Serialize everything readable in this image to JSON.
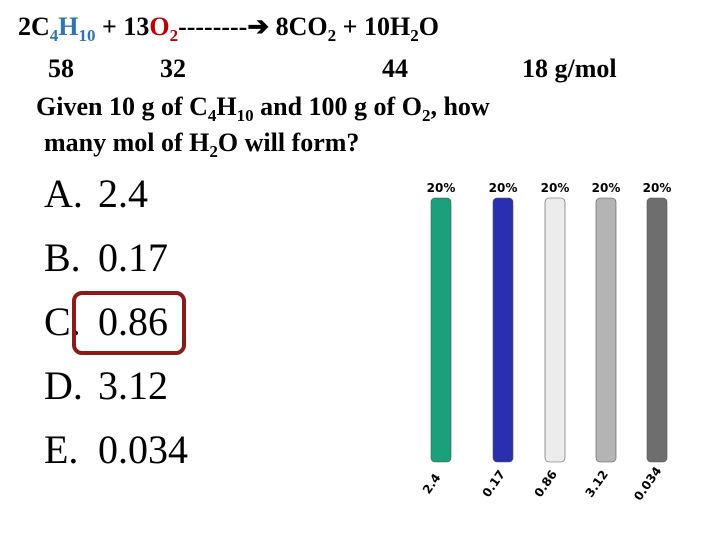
{
  "slide": {
    "equation": [
      {
        "text": "2C"
      },
      {
        "text": "4",
        "sub": true,
        "color": "#2e75b6"
      },
      {
        "text": "H",
        "color": "#2e75b6"
      },
      {
        "text": "10",
        "sub": true,
        "color": "#2e75b6"
      },
      {
        "text": " + 13"
      },
      {
        "text": "O",
        "color": "#c00000"
      },
      {
        "text": "2",
        "sub": true,
        "color": "#c00000"
      },
      {
        "text": "--------➔ 8CO"
      },
      {
        "text": "2",
        "sub": true
      },
      {
        "text": " + 10H"
      },
      {
        "text": "2",
        "sub": true
      },
      {
        "text": "O"
      }
    ],
    "masses": [
      "58",
      "32",
      "44",
      "18 g/mol"
    ],
    "question_line1": [
      {
        "text": "Given 10 g of C"
      },
      {
        "text": "4",
        "sub": true
      },
      {
        "text": "H"
      },
      {
        "text": "10",
        "sub": true
      },
      {
        "text": " and 100 g of O"
      },
      {
        "text": "2",
        "sub": true
      },
      {
        "text": ", how"
      }
    ],
    "question_line2": [
      {
        "text": "many mol of H"
      },
      {
        "text": "2",
        "sub": true
      },
      {
        "text": "O will form?"
      }
    ],
    "answers": [
      {
        "letter": "A.",
        "text": "2.4"
      },
      {
        "letter": "B.",
        "text": "0.17"
      },
      {
        "letter": "C.",
        "text": "0.86"
      },
      {
        "letter": "D.",
        "text": "3.12"
      },
      {
        "letter": "E.",
        "text": "0.034"
      }
    ]
  },
  "chart_data": {
    "type": "bar",
    "categories": [
      "2.4",
      "0.17",
      "0.86",
      "3.12",
      "0.034"
    ],
    "values": [
      20,
      20,
      20,
      20,
      20
    ],
    "value_labels": [
      "20%",
      "20%",
      "20%",
      "20%",
      "20%"
    ],
    "colors": [
      "#1aa07a",
      "#2a2fb0",
      "#ececec",
      "#b4b4b4",
      "#6e6e6e"
    ]
  }
}
